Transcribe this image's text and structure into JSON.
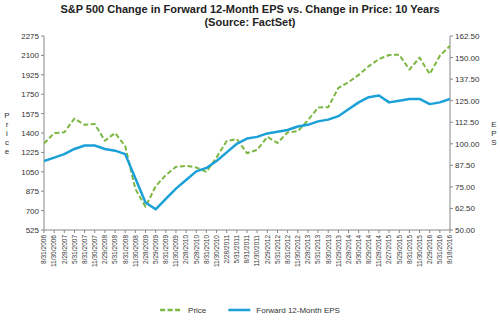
{
  "chart_data": {
    "type": "line",
    "title": "S&P 500 Change in Forward 12-Month EPS vs. Change in Price: 10 Years",
    "subtitle": "(Source: FactSet)",
    "y_label": "Price",
    "y2_label": "EPS",
    "categories": [
      "8/31/2006",
      "11/30/2006",
      "2/28/2007",
      "5/31/2007",
      "8/31/2007",
      "11/30/2007",
      "2/29/2008",
      "5/31/2008",
      "8/31/2008",
      "11/30/2008",
      "2/28/2009",
      "5/29/2009",
      "8/31/2009",
      "11/30/2009",
      "2/28/2010",
      "5/28/2010",
      "8/31/2010",
      "11/30/2010",
      "2/28/2011",
      "5/31/2011",
      "8/31/2011",
      "11/30/2011",
      "2/29/2012",
      "5/31/2012",
      "8/31/2012",
      "11/30/2012",
      "2/28/2013",
      "5/31/2013",
      "8/30/2013",
      "11/29/2013",
      "2/28/2014",
      "5/30/2014",
      "8/29/2014",
      "11/28/2014",
      "2/27/2015",
      "5/29/2015",
      "8/31/2015",
      "11/30/2015",
      "2/29/2016",
      "5/31/2016",
      "8/18/2016"
    ],
    "series": [
      {
        "name": "Price",
        "color": "#7cb742",
        "line_style": "dashed",
        "values": [
          1304,
          1400,
          1406,
          1530,
          1474,
          1481,
          1330,
          1400,
          1282,
          896,
          735,
          919,
          1020,
          1095,
          1104,
          1089,
          1049,
          1180,
          1327,
          1345,
          1218,
          1247,
          1365,
          1310,
          1406,
          1416,
          1514,
          1630,
          1633,
          1806,
          1859,
          1924,
          2003,
          2067,
          2104,
          2107,
          1972,
          2080,
          1932,
          2097,
          2187
        ]
      },
      {
        "name": "Forward 12-Month EPS",
        "color": "#1ba0d8",
        "line_style": "solid",
        "axis": "y2",
        "values": [
          90,
          92,
          94,
          97,
          99,
          99,
          97,
          96,
          94,
          80,
          66,
          62,
          68,
          74,
          79,
          84,
          86,
          90,
          95,
          100,
          103,
          104,
          106,
          107,
          108,
          110,
          111,
          113,
          114,
          116,
          120,
          124,
          127,
          128,
          124,
          125,
          126,
          126,
          123,
          124,
          126
        ]
      }
    ],
    "ylim": [
      525,
      2275
    ],
    "yticks": [
      525,
      700,
      875,
      1050,
      1225,
      1400,
      1575,
      1750,
      1925,
      2100,
      2275
    ],
    "y2lim": [
      50,
      162.5
    ],
    "y2ticks": [
      {
        "value": 50,
        "label": "50.00"
      },
      {
        "value": 62.5,
        "label": "62.50"
      },
      {
        "value": 75,
        "label": "75.00"
      },
      {
        "value": 87.5,
        "label": "87.50"
      },
      {
        "value": 100,
        "label": "100.00"
      },
      {
        "value": 112.5,
        "label": "112.50"
      },
      {
        "value": 125,
        "label": "125.00"
      },
      {
        "value": 137.5,
        "label": "137.50"
      },
      {
        "value": 150,
        "label": "150.00"
      },
      {
        "value": 162.5,
        "label": "162.50"
      }
    ],
    "grid": false,
    "legend": "bottom"
  }
}
